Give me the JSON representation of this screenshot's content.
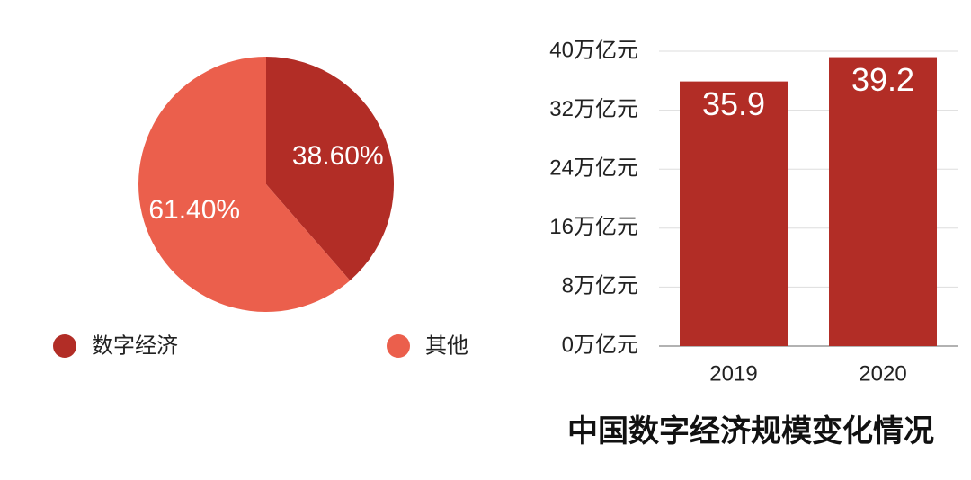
{
  "chart_data": [
    {
      "type": "pie",
      "categories": [
        "数字经济",
        "其他"
      ],
      "values": [
        38.6,
        61.4
      ],
      "value_labels": [
        "38.60%",
        "61.40%"
      ],
      "colors": [
        "#b22d26",
        "#eb5f4c"
      ]
    },
    {
      "type": "bar",
      "title": "中国数字经济规模变化情况",
      "categories": [
        "2019",
        "2020"
      ],
      "values": [
        35.9,
        39.2
      ],
      "color": "#b22d26",
      "ylim": [
        0,
        40
      ],
      "yticks": [
        {
          "value": 0,
          "label": "0万亿元"
        },
        {
          "value": 8,
          "label": "8万亿元"
        },
        {
          "value": 16,
          "label": "16万亿元"
        },
        {
          "value": 24,
          "label": "24万亿元"
        },
        {
          "value": 32,
          "label": "32万亿元"
        },
        {
          "value": 40,
          "label": "40万亿元"
        }
      ],
      "grid": true
    }
  ]
}
